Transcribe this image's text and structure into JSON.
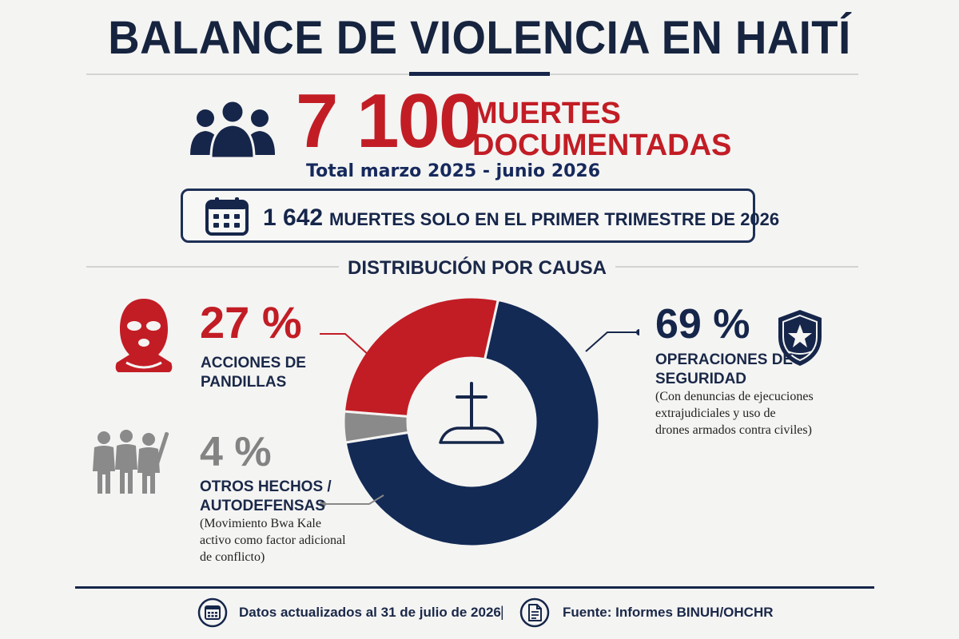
{
  "title": "BALANCE DE VIOLENCIA EN HAITÍ",
  "headline": {
    "number": "7 100",
    "label_line1": "MUERTES",
    "label_line2": "DOCUMENTADAS",
    "period": "Total marzo 2025 - junio 2026"
  },
  "quarter": {
    "number": "1 642",
    "text": "MUERTES SOLO EN EL PRIMER TRIMESTRE DE 2026"
  },
  "distribution": {
    "heading": "DISTRIBUCIÓN POR CAUSA",
    "segments": [
      {
        "key": "security",
        "percent_label": "69 %",
        "value": 69,
        "color": "#132a55",
        "label_line1": "OPERACIONES DE",
        "label_line2": "SEGURIDAD",
        "note": [
          "(Con denuncias de ejecuciones",
          "extrajudiciales y uso de",
          "drones armados contra civiles)"
        ]
      },
      {
        "key": "other",
        "percent_label": "4 %",
        "value": 4,
        "color": "#8a8a8a",
        "label_line1": "OTROS HECHOS /",
        "label_line2": "AUTODEFENSAS",
        "note": [
          "(Movimiento Bwa Kale",
          "activo como factor adicional",
          "de conflicto)"
        ]
      },
      {
        "key": "gangs",
        "percent_label": "27 %",
        "value": 27,
        "color": "#c21d25",
        "label_line1": "ACCIONES DE",
        "label_line2": "PANDILLAS",
        "note": []
      }
    ]
  },
  "footer": {
    "updated": "Datos actualizados al 31 de julio de 2026",
    "separator": "|",
    "source": "Fuente: Informes BINUH/OHCHR"
  },
  "icons": {
    "people": "people-group-icon",
    "calendar": "calendar-icon",
    "mask": "balaclava-icon",
    "badge": "police-badge-icon",
    "group": "armed-group-icon",
    "grave": "grave-cross-icon",
    "document": "document-icon"
  },
  "colors": {
    "red": "#c21d25",
    "navy": "#132a55",
    "gray": "#8a8a8a"
  }
}
